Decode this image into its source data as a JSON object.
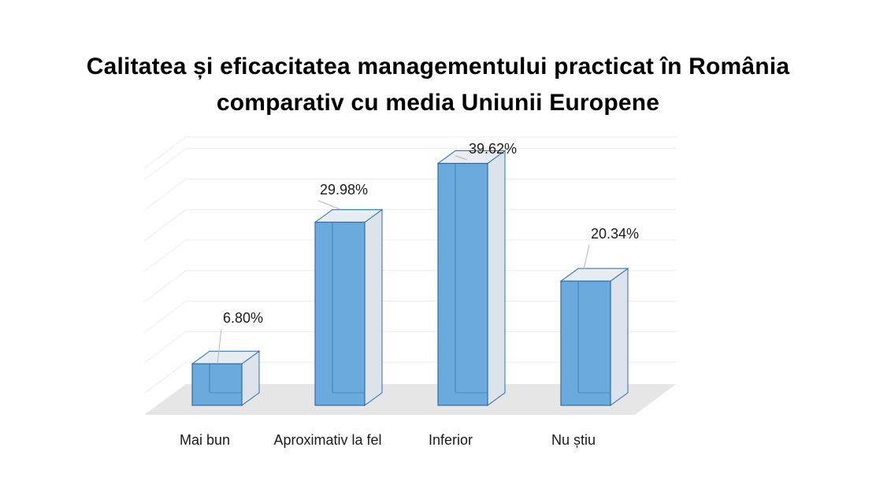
{
  "title": {
    "line1": "Calitatea și eficacitatea managementului practicat în România",
    "line2": "comparativ cu media Uniunii Europene"
  },
  "chart_data": {
    "type": "bar",
    "style": "3d-column",
    "title": "Calitatea și eficacitatea managementului practicat în România comparativ cu media Uniunii Europene",
    "categories": [
      "Mai bun",
      "Aproximativ la fel",
      "Inferior",
      "Nu știu"
    ],
    "values": [
      6.8,
      29.98,
      39.62,
      20.34
    ],
    "data_labels": [
      "6.80%",
      "29.98%",
      "39.62%",
      "20.34%"
    ],
    "unit": "%",
    "ylim": [
      0,
      45
    ],
    "grid": true,
    "legend": false,
    "colors": {
      "bar_front": "#6aaadc",
      "bar_top": "#e8edf3",
      "bar_side": "#dde3ea",
      "bar_edge": "#2a6fad",
      "floor": "#e6e6e6",
      "grid": "#ececec"
    }
  }
}
